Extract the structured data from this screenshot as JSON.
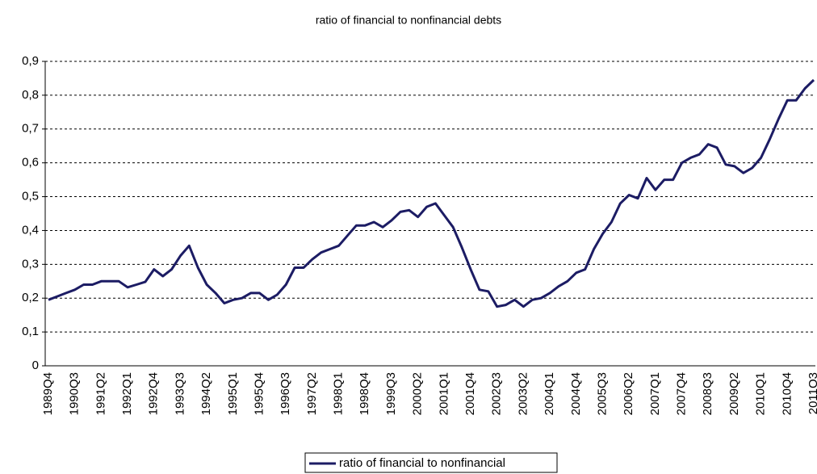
{
  "chart_data": {
    "type": "line",
    "title": "ratio of financial to nonfinancial debts",
    "categories": [
      "1989Q4",
      null,
      null,
      "1990Q3",
      null,
      null,
      "1991Q2",
      null,
      null,
      "1992Q1",
      null,
      null,
      "1992Q4",
      null,
      null,
      "1993Q3",
      null,
      null,
      "1994Q2",
      null,
      null,
      "1995Q1",
      null,
      null,
      "1995Q4",
      null,
      null,
      "1996Q3",
      null,
      null,
      "1997Q2",
      null,
      null,
      "1998Q1",
      null,
      null,
      "1998Q4",
      null,
      null,
      "1999Q3",
      null,
      null,
      "2000Q2",
      null,
      null,
      "2001Q1",
      null,
      null,
      "2001Q4",
      null,
      null,
      "2002Q3",
      null,
      null,
      "2003Q2",
      null,
      null,
      "2004Q1",
      null,
      null,
      "2004Q4",
      null,
      null,
      "2005Q3",
      null,
      null,
      "2006Q2",
      null,
      null,
      "2007Q1",
      null,
      null,
      "2007Q4",
      null,
      null,
      "2008Q3",
      null,
      null,
      "2009Q2",
      null,
      null,
      "2010Q1",
      null,
      null,
      "2010Q4",
      null,
      null,
      "2011Q3"
    ],
    "series": [
      {
        "name": "ratio of financial to nonfinancial",
        "color": "#1c1c64",
        "values": [
          0.195,
          0.205,
          0.215,
          0.225,
          0.24,
          0.24,
          0.25,
          0.25,
          0.25,
          0.232,
          0.24,
          0.248,
          0.285,
          0.265,
          0.285,
          0.325,
          0.355,
          0.29,
          0.24,
          0.215,
          0.185,
          0.195,
          0.2,
          0.215,
          0.215,
          0.195,
          0.21,
          0.24,
          0.29,
          0.29,
          0.315,
          0.335,
          0.345,
          0.355,
          0.385,
          0.415,
          0.415,
          0.425,
          0.41,
          0.43,
          0.455,
          0.46,
          0.44,
          0.47,
          0.48,
          0.445,
          0.41,
          0.35,
          0.285,
          0.225,
          0.22,
          0.175,
          0.18,
          0.195,
          0.175,
          0.195,
          0.2,
          0.215,
          0.235,
          0.25,
          0.275,
          0.285,
          0.345,
          0.39,
          0.425,
          0.48,
          0.505,
          0.495,
          0.555,
          0.52,
          0.55,
          0.55,
          0.6,
          0.615,
          0.625,
          0.655,
          0.645,
          0.595,
          0.59,
          0.57,
          0.585,
          0.615,
          0.67,
          0.73,
          0.785,
          0.785,
          0.82,
          0.845
        ]
      }
    ],
    "ylim": [
      0,
      0.9
    ],
    "yticks": [
      0,
      {
        "value": 0.1,
        "label": "0,1"
      },
      {
        "value": 0.2,
        "label": "0,2"
      },
      {
        "value": 0.3,
        "label": "0,3"
      },
      {
        "value": 0.4,
        "label": "0,4"
      },
      {
        "value": 0.5,
        "label": "0,5"
      },
      {
        "value": 0.6,
        "label": "0,6"
      },
      {
        "value": 0.7,
        "label": "0,7"
      },
      {
        "value": 0.8,
        "label": "0,8"
      },
      {
        "value": 0.9,
        "label": "0,9"
      }
    ],
    "grid": true,
    "legend": "bottom"
  }
}
